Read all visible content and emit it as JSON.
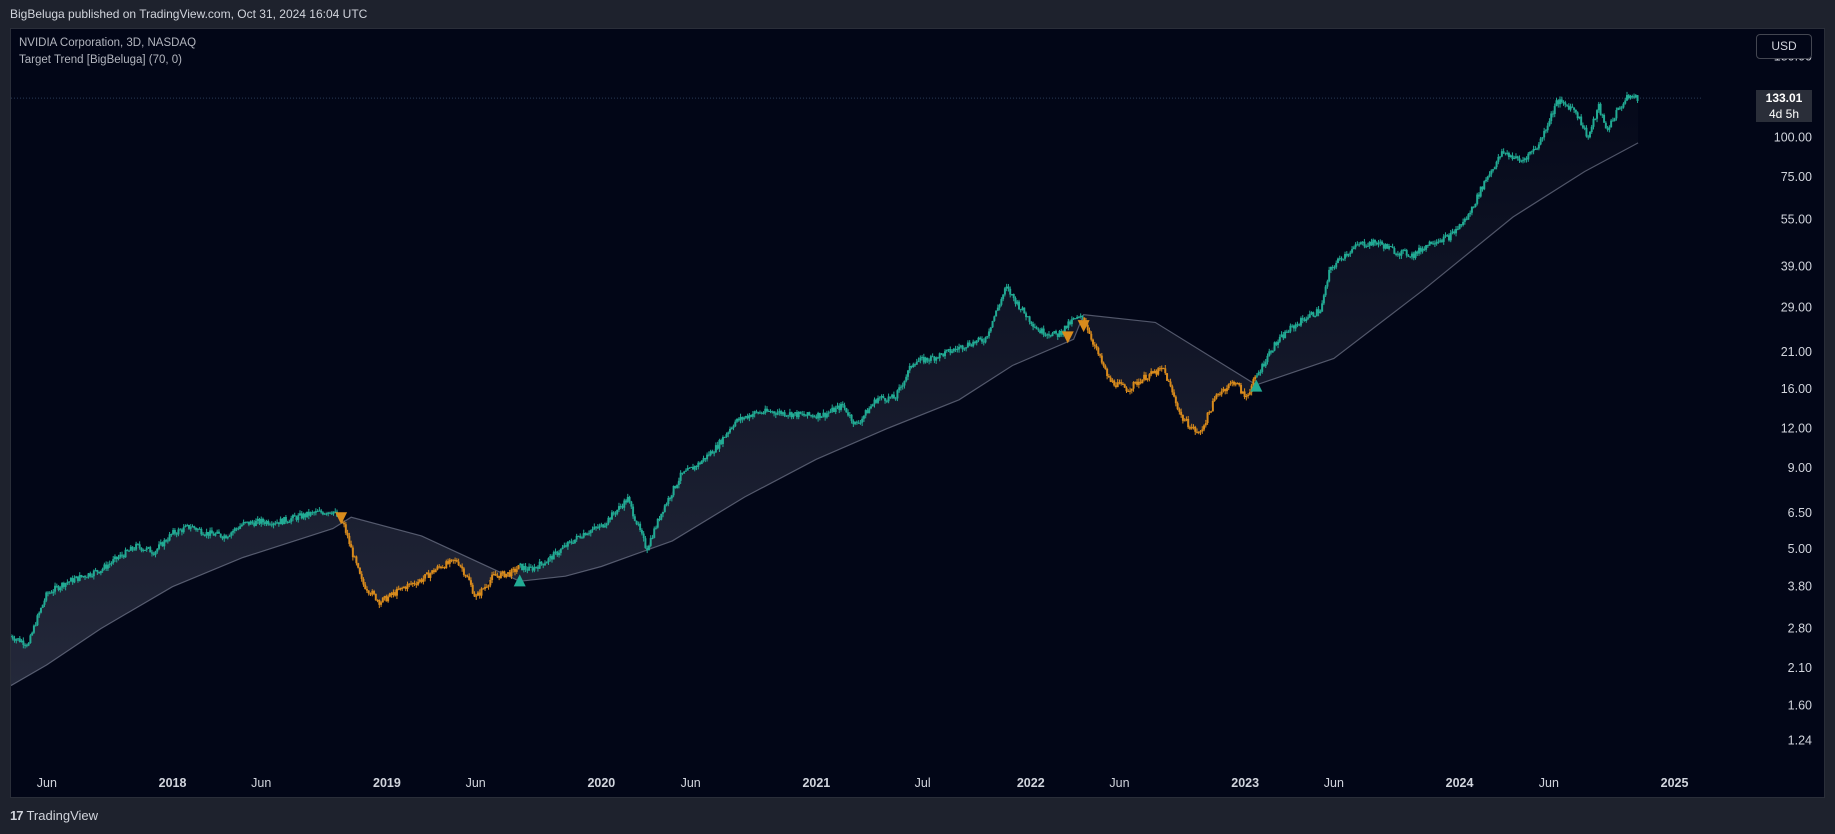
{
  "header": {
    "published": "BigBeluga published on TradingView.com, Oct 31, 2024 16:04 UTC"
  },
  "legend": {
    "symbol": "NVIDIA Corporation, 3D, NASDAQ",
    "indicator": "Target Trend [BigBeluga] (70, 0)"
  },
  "currency_button": "USD",
  "last_price": {
    "price": "133.01",
    "countdown": "4d 5h"
  },
  "footer": {
    "logo_mark": "17",
    "logo_text": "TradingView"
  },
  "colors": {
    "background": "#020617",
    "bull": "#22ab94",
    "bear": "#d98b1c",
    "band": "#9aa0b5",
    "text": "#d1d4dc"
  },
  "chart_data": {
    "type": "line",
    "title": "NVIDIA Corporation, 3D, NASDAQ",
    "scale": "log",
    "ylim": [
      1.1,
      220
    ],
    "y_ticks": [
      "180.00",
      "100.00",
      "75.00",
      "55.00",
      "39.00",
      "29.00",
      "21.00",
      "16.00",
      "12.00",
      "9.00",
      "6.50",
      "5.00",
      "3.80",
      "2.80",
      "2.10",
      "1.60",
      "1.24"
    ],
    "x_ticks": [
      "Jun",
      "2018",
      "Jun",
      "2019",
      "Jun",
      "2020",
      "Jun",
      "2021",
      "Jul",
      "2022",
      "Jun",
      "2023",
      "Jun",
      "2024",
      "Jun",
      "2025"
    ],
    "xlim": [
      "2017-04-01",
      "2025-02-15"
    ],
    "x_tick_dates": [
      "2017-06-01",
      "2018-01-01",
      "2018-06-01",
      "2019-01-01",
      "2019-06-01",
      "2020-01-01",
      "2020-06-01",
      "2021-01-01",
      "2021-07-01",
      "2022-01-01",
      "2022-06-01",
      "2023-01-01",
      "2023-06-01",
      "2024-01-01",
      "2024-06-01",
      "2025-01-01"
    ],
    "series": [
      {
        "name": "NVDA",
        "points": [
          [
            "2017-04-01",
            2.65
          ],
          [
            "2017-05-01",
            2.5
          ],
          [
            "2017-05-12",
            2.9
          ],
          [
            "2017-06-01",
            3.6
          ],
          [
            "2017-07-01",
            3.9
          ],
          [
            "2017-08-01",
            4.1
          ],
          [
            "2017-09-01",
            4.3
          ],
          [
            "2017-10-01",
            4.7
          ],
          [
            "2017-11-01",
            5.1
          ],
          [
            "2017-12-01",
            4.9
          ],
          [
            "2018-01-01",
            5.6
          ],
          [
            "2018-02-01",
            5.9
          ],
          [
            "2018-03-01",
            5.6
          ],
          [
            "2018-04-01",
            5.5
          ],
          [
            "2018-05-01",
            6.0
          ],
          [
            "2018-06-01",
            6.1
          ],
          [
            "2018-07-01",
            6.1
          ],
          [
            "2018-08-01",
            6.3
          ],
          [
            "2018-09-01",
            6.5
          ],
          [
            "2018-10-01",
            6.6
          ],
          [
            "2018-10-20",
            5.9
          ],
          [
            "2018-11-01",
            5.0
          ],
          [
            "2018-11-20",
            3.9
          ],
          [
            "2018-12-20",
            3.4
          ],
          [
            "2019-01-01",
            3.5
          ],
          [
            "2019-02-01",
            3.8
          ],
          [
            "2019-03-01",
            4.0
          ],
          [
            "2019-04-01",
            4.4
          ],
          [
            "2019-05-01",
            4.6
          ],
          [
            "2019-05-20",
            4.0
          ],
          [
            "2019-06-01",
            3.5
          ],
          [
            "2019-07-01",
            4.1
          ],
          [
            "2019-08-01",
            4.2
          ],
          [
            "2019-08-15",
            4.4
          ],
          [
            "2019-09-01",
            4.3
          ],
          [
            "2019-10-01",
            4.6
          ],
          [
            "2019-11-01",
            5.1
          ],
          [
            "2019-12-01",
            5.6
          ],
          [
            "2020-01-01",
            5.9
          ],
          [
            "2020-02-15",
            7.2
          ],
          [
            "2020-03-18",
            5.0
          ],
          [
            "2020-04-15",
            6.7
          ],
          [
            "2020-05-15",
            8.5
          ],
          [
            "2020-06-15",
            9.3
          ],
          [
            "2020-07-15",
            10.5
          ],
          [
            "2020-08-15",
            12.6
          ],
          [
            "2020-09-15",
            13.4
          ],
          [
            "2020-10-15",
            13.6
          ],
          [
            "2020-11-15",
            13.4
          ],
          [
            "2020-12-15",
            13.2
          ],
          [
            "2021-01-15",
            13.3
          ],
          [
            "2021-02-15",
            14.2
          ],
          [
            "2021-03-10",
            12.3
          ],
          [
            "2021-04-15",
            15.0
          ],
          [
            "2021-05-15",
            15.0
          ],
          [
            "2021-06-15",
            19.5
          ],
          [
            "2021-07-15",
            20.0
          ],
          [
            "2021-08-15",
            21.0
          ],
          [
            "2021-09-15",
            22.2
          ],
          [
            "2021-10-15",
            23.0
          ],
          [
            "2021-11-20",
            33.5
          ],
          [
            "2021-12-20",
            28.0
          ],
          [
            "2022-01-15",
            24.5
          ],
          [
            "2022-02-15",
            23.7
          ],
          [
            "2022-03-15",
            26.5
          ],
          [
            "2022-04-01",
            27.0
          ],
          [
            "2022-04-15",
            23.0
          ],
          [
            "2022-05-15",
            17.0
          ],
          [
            "2022-06-15",
            16.0
          ],
          [
            "2022-07-15",
            17.5
          ],
          [
            "2022-08-15",
            18.5
          ],
          [
            "2022-09-15",
            13.0
          ],
          [
            "2022-10-15",
            11.5
          ],
          [
            "2022-11-15",
            15.5
          ],
          [
            "2022-12-15",
            17.0
          ],
          [
            "2023-01-01",
            15.0
          ],
          [
            "2023-01-20",
            17.5
          ],
          [
            "2023-02-15",
            21.5
          ],
          [
            "2023-03-15",
            24.5
          ],
          [
            "2023-04-15",
            27.0
          ],
          [
            "2023-05-10",
            28.5
          ],
          [
            "2023-05-25",
            38.0
          ],
          [
            "2023-06-15",
            42.0
          ],
          [
            "2023-07-15",
            46.0
          ],
          [
            "2023-08-15",
            46.5
          ],
          [
            "2023-09-15",
            43.5
          ],
          [
            "2023-10-15",
            42.5
          ],
          [
            "2023-11-15",
            47.0
          ],
          [
            "2023-12-15",
            48.5
          ],
          [
            "2024-01-15",
            56.0
          ],
          [
            "2024-02-15",
            74.0
          ],
          [
            "2024-03-15",
            90.0
          ],
          [
            "2024-04-15",
            84.0
          ],
          [
            "2024-05-15",
            95.0
          ],
          [
            "2024-06-15",
            130.0
          ],
          [
            "2024-07-15",
            123.0
          ],
          [
            "2024-08-07",
            100.0
          ],
          [
            "2024-08-25",
            125.0
          ],
          [
            "2024-09-07",
            105.0
          ],
          [
            "2024-09-25",
            121.0
          ],
          [
            "2024-10-15",
            135.0
          ],
          [
            "2024-10-31",
            133.01
          ]
        ]
      },
      {
        "name": "Target Trend",
        "points": [
          [
            "2017-04-01",
            1.85
          ],
          [
            "2017-06-01",
            2.15
          ],
          [
            "2017-09-01",
            2.8
          ],
          [
            "2018-01-01",
            3.8
          ],
          [
            "2018-05-01",
            4.7
          ],
          [
            "2018-10-01",
            5.8
          ],
          [
            "2018-11-01",
            6.3
          ],
          [
            "2019-03-01",
            5.5
          ],
          [
            "2019-08-15",
            3.95
          ],
          [
            "2019-11-01",
            4.1
          ],
          [
            "2020-01-01",
            4.4
          ],
          [
            "2020-05-01",
            5.3
          ],
          [
            "2020-09-01",
            7.3
          ],
          [
            "2021-01-01",
            9.6
          ],
          [
            "2021-05-01",
            12.0
          ],
          [
            "2021-09-01",
            14.8
          ],
          [
            "2021-12-01",
            19.0
          ],
          [
            "2022-03-15",
            23.0
          ],
          [
            "2022-04-01",
            27.5
          ],
          [
            "2022-08-01",
            26.0
          ],
          [
            "2023-01-20",
            16.5
          ],
          [
            "2023-06-01",
            20.0
          ],
          [
            "2023-11-01",
            33.0
          ],
          [
            "2024-04-01",
            56.0
          ],
          [
            "2024-08-01",
            78.0
          ],
          [
            "2024-10-31",
            96.0
          ]
        ]
      }
    ],
    "trend_segments": [
      {
        "from": "2017-04-01",
        "to": "2018-10-15",
        "direction": "up"
      },
      {
        "from": "2018-10-15",
        "to": "2019-08-15",
        "direction": "down"
      },
      {
        "from": "2019-08-15",
        "to": "2022-04-01",
        "direction": "up"
      },
      {
        "from": "2022-04-01",
        "to": "2023-01-20",
        "direction": "down"
      },
      {
        "from": "2023-01-20",
        "to": "2024-10-31",
        "direction": "up"
      }
    ],
    "signals": [
      {
        "date": "2018-10-15",
        "price": 6.3,
        "type": "down"
      },
      {
        "date": "2019-08-15",
        "price": 3.95,
        "type": "up"
      },
      {
        "date": "2022-03-05",
        "price": 23.5,
        "type": "down"
      },
      {
        "date": "2022-04-01",
        "price": 25.5,
        "type": "down"
      },
      {
        "date": "2023-01-20",
        "price": 16.3,
        "type": "up"
      }
    ],
    "grid": false
  }
}
